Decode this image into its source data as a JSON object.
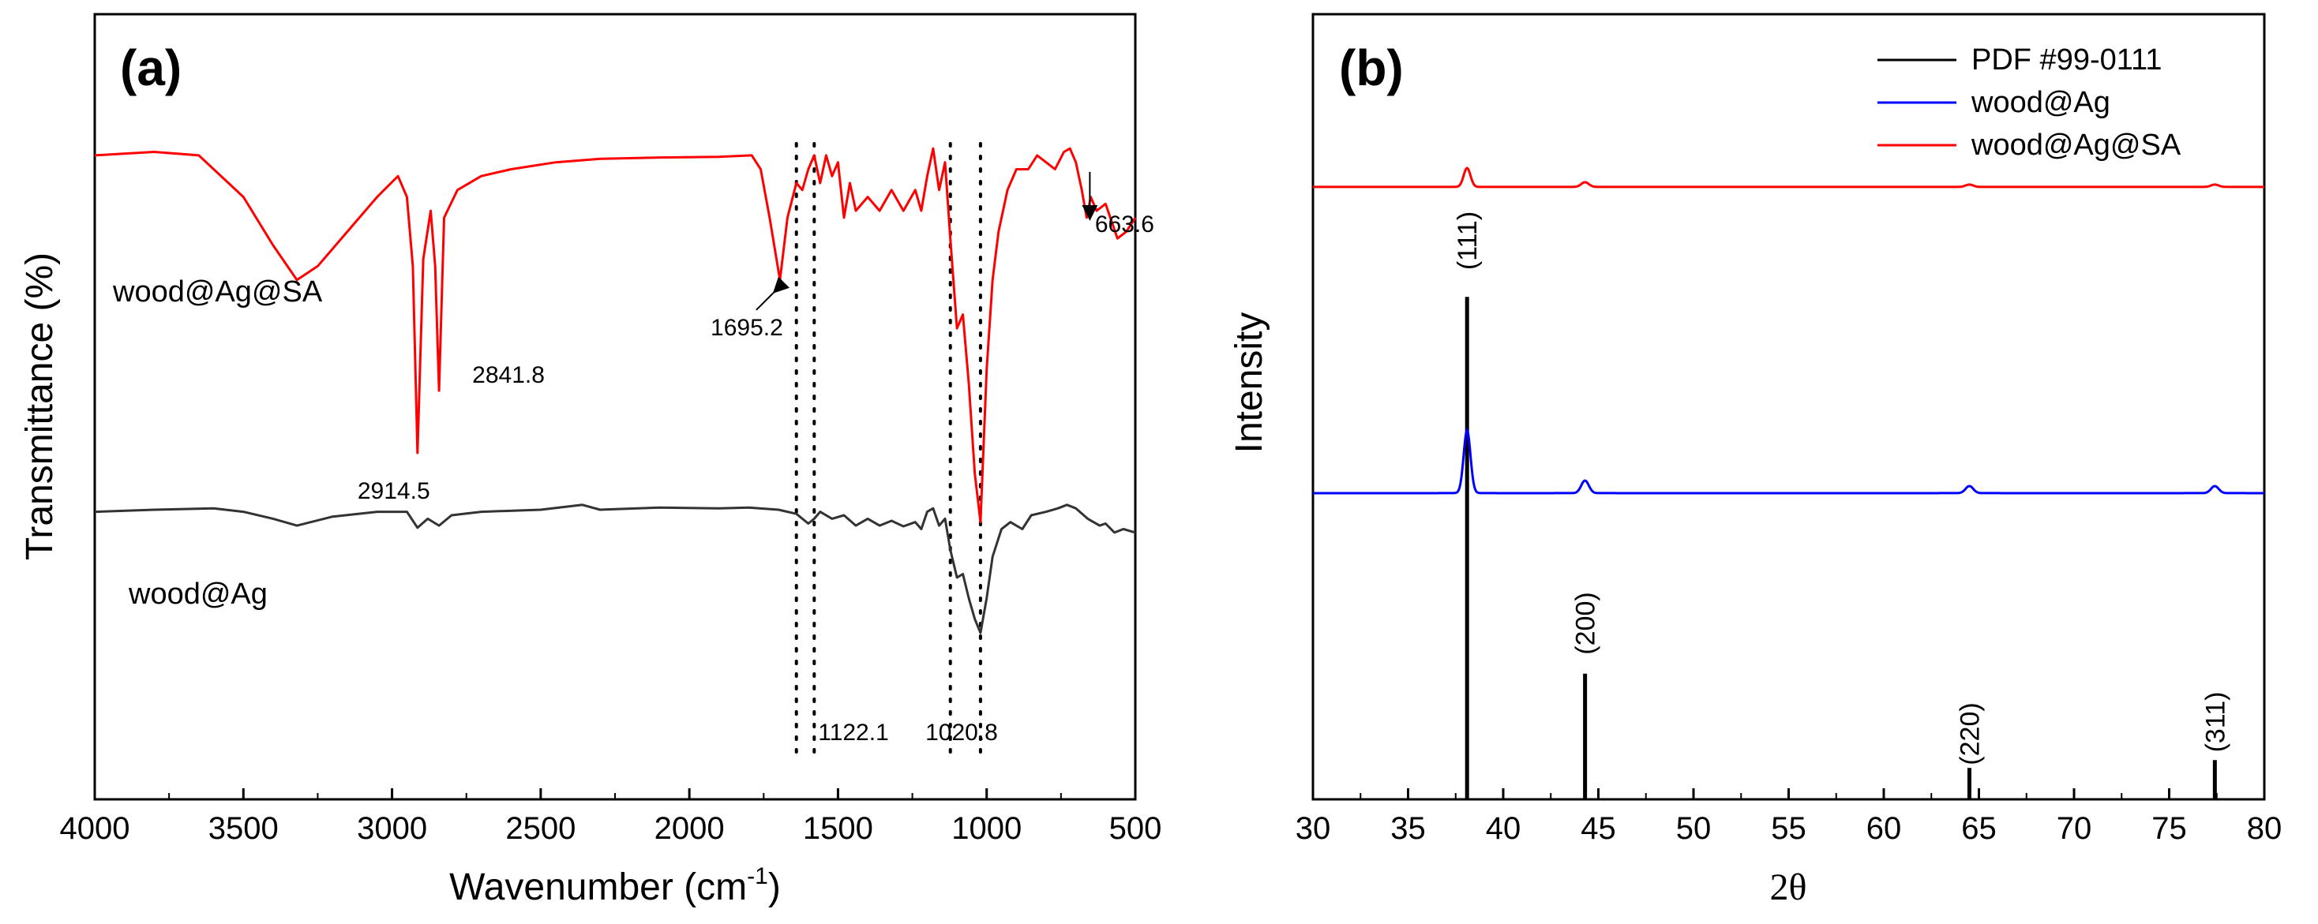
{
  "chart_data": [
    {
      "panel_label": "(a)",
      "type": "line",
      "xlabel": "Wavenumber (cm",
      "xlabel_sup": "-1",
      "xlabel_close": ")",
      "ylabel": "Transmittance (%)",
      "xlim": [
        4000,
        500
      ],
      "x_ticks": [
        4000,
        3500,
        3000,
        2500,
        2000,
        1500,
        1000,
        500
      ],
      "x_tick_labels": [
        "4000",
        "3500",
        "3000",
        "2500",
        "2000",
        "1500",
        "1000",
        "500"
      ],
      "ylim": [
        0,
        100
      ],
      "y_ticks_shown": false,
      "series": [
        {
          "name": "wood@Ag@SA",
          "color": "#ff0000",
          "points": [
            [
              4000,
              91
            ],
            [
              3800,
              91.5
            ],
            [
              3650,
              91
            ],
            [
              3500,
              85
            ],
            [
              3400,
              78
            ],
            [
              3320,
              73
            ],
            [
              3250,
              75
            ],
            [
              3150,
              80
            ],
            [
              3050,
              85
            ],
            [
              2980,
              88
            ],
            [
              2950,
              85
            ],
            [
              2930,
              75
            ],
            [
              2914.5,
              48
            ],
            [
              2895,
              76
            ],
            [
              2870,
              83
            ],
            [
              2855,
              75
            ],
            [
              2841.8,
              57
            ],
            [
              2825,
              82
            ],
            [
              2780,
              86
            ],
            [
              2700,
              88
            ],
            [
              2600,
              89
            ],
            [
              2450,
              90
            ],
            [
              2300,
              90.5
            ],
            [
              2100,
              90.7
            ],
            [
              1900,
              90.8
            ],
            [
              1790,
              91
            ],
            [
              1760,
              89
            ],
            [
              1730,
              82
            ],
            [
              1695.2,
              73
            ],
            [
              1670,
              82
            ],
            [
              1640,
              87
            ],
            [
              1620,
              86
            ],
            [
              1600,
              89
            ],
            [
              1580,
              91
            ],
            [
              1560,
              87
            ],
            [
              1540,
              91
            ],
            [
              1520,
              88
            ],
            [
              1500,
              90
            ],
            [
              1480,
              82
            ],
            [
              1460,
              87
            ],
            [
              1440,
              83
            ],
            [
              1400,
              85
            ],
            [
              1360,
              83
            ],
            [
              1320,
              86
            ],
            [
              1280,
              83
            ],
            [
              1240,
              86
            ],
            [
              1220,
              83
            ],
            [
              1200,
              88
            ],
            [
              1180,
              92
            ],
            [
              1160,
              86
            ],
            [
              1140,
              90
            ],
            [
              1120.5,
              78
            ],
            [
              1100,
              66
            ],
            [
              1080,
              68
            ],
            [
              1060,
              58
            ],
            [
              1040,
              45
            ],
            [
              1020.8,
              38
            ],
            [
              1000,
              60
            ],
            [
              980,
              73
            ],
            [
              960,
              80
            ],
            [
              930,
              86
            ],
            [
              900,
              89
            ],
            [
              860,
              89
            ],
            [
              830,
              91
            ],
            [
              800,
              90
            ],
            [
              770,
              89
            ],
            [
              740,
              91.5
            ],
            [
              720,
              92
            ],
            [
              700,
              90
            ],
            [
              680,
              86
            ],
            [
              663.6,
              82
            ],
            [
              650,
              85
            ],
            [
              630,
              83
            ],
            [
              600,
              84
            ],
            [
              560,
              79
            ],
            [
              530,
              80
            ],
            [
              500,
              82
            ]
          ],
          "peak_labels": [
            {
              "text": "2914.5",
              "x": 2914.5,
              "y": 48
            },
            {
              "text": "2841.8",
              "x": 2841.8,
              "y": 57
            },
            {
              "text": "1695.2",
              "x": 1695.2,
              "y": 73
            },
            {
              "text": "663.6",
              "x": 663.6,
              "y": 82
            }
          ]
        },
        {
          "name": "wood@Ag",
          "color": "#333333",
          "points": [
            [
              4000,
              39.5
            ],
            [
              3800,
              39.8
            ],
            [
              3600,
              40
            ],
            [
              3500,
              39.5
            ],
            [
              3400,
              38.5
            ],
            [
              3320,
              37.5
            ],
            [
              3200,
              38.8
            ],
            [
              3050,
              39.5
            ],
            [
              2950,
              39.5
            ],
            [
              2914.5,
              37.2
            ],
            [
              2880,
              38.5
            ],
            [
              2841.8,
              37.5
            ],
            [
              2800,
              39
            ],
            [
              2700,
              39.5
            ],
            [
              2500,
              39.8
            ],
            [
              2360,
              40.5
            ],
            [
              2300,
              39.8
            ],
            [
              2100,
              40.1
            ],
            [
              1900,
              40
            ],
            [
              1800,
              40.1
            ],
            [
              1700,
              39.8
            ],
            [
              1640,
              39.2
            ],
            [
              1600,
              37.8
            ],
            [
              1580,
              38.5
            ],
            [
              1560,
              39.5
            ],
            [
              1520,
              38.5
            ],
            [
              1480,
              39
            ],
            [
              1440,
              37.5
            ],
            [
              1400,
              38.5
            ],
            [
              1360,
              37.5
            ],
            [
              1320,
              38.2
            ],
            [
              1280,
              37.4
            ],
            [
              1240,
              38
            ],
            [
              1220,
              37
            ],
            [
              1200,
              39.5
            ],
            [
              1180,
              40
            ],
            [
              1160,
              37.5
            ],
            [
              1140,
              38.5
            ],
            [
              1122.1,
              34
            ],
            [
              1100,
              30
            ],
            [
              1080,
              30.5
            ],
            [
              1060,
              27
            ],
            [
              1040,
              24
            ],
            [
              1020.8,
              22
            ],
            [
              1000,
              27
            ],
            [
              980,
              33
            ],
            [
              950,
              37
            ],
            [
              920,
              38
            ],
            [
              880,
              37
            ],
            [
              850,
              39
            ],
            [
              800,
              39.5
            ],
            [
              760,
              40
            ],
            [
              730,
              40.5
            ],
            [
              700,
              40
            ],
            [
              660,
              38.5
            ],
            [
              620,
              37.5
            ],
            [
              600,
              37.8
            ],
            [
              570,
              36.5
            ],
            [
              540,
              37
            ],
            [
              500,
              36.5
            ]
          ]
        }
      ],
      "series_labels": [
        "wood@Ag@SA",
        "wood@Ag"
      ],
      "dotted_reference_lines": [
        1640,
        1580,
        1122.1,
        1020.8
      ],
      "bottom_labels": [
        "1122.1",
        "1020.8"
      ]
    },
    {
      "panel_label": "(b)",
      "type": "line",
      "xlabel": "2θ",
      "ylabel": "Intensity",
      "xlim": [
        30,
        80
      ],
      "x_ticks": [
        30,
        35,
        40,
        45,
        50,
        55,
        60,
        65,
        70,
        75,
        80
      ],
      "x_tick_labels": [
        "30",
        "35",
        "40",
        "45",
        "50",
        "55",
        "60",
        "65",
        "70",
        "75",
        "80"
      ],
      "ylim": [
        0,
        100
      ],
      "y_ticks_shown": false,
      "legend_position": "top-right",
      "series": [
        {
          "name": "PDF #99-0111",
          "color": "#000000",
          "style": "sticks",
          "sticks": [
            [
              38.1,
              64
            ],
            [
              44.3,
              16
            ],
            [
              64.5,
              4
            ],
            [
              77.4,
              5
            ]
          ]
        },
        {
          "name": "wood@Ag",
          "color": "#0000ff",
          "baseline": 39,
          "peaks": [
            [
              38.1,
              8,
              0.18
            ],
            [
              44.3,
              1.6,
              0.2
            ],
            [
              64.5,
              0.9,
              0.2
            ],
            [
              77.4,
              0.9,
              0.2
            ]
          ]
        },
        {
          "name": "wood@Ag@SA",
          "color": "#ff0000",
          "baseline": 78,
          "peaks": [
            [
              38.1,
              2.4,
              0.18
            ],
            [
              44.3,
              0.6,
              0.2
            ],
            [
              64.5,
              0.3,
              0.2
            ],
            [
              77.4,
              0.3,
              0.2
            ]
          ]
        }
      ],
      "stick_labels": [
        {
          "text": "(111)",
          "x": 38.1
        },
        {
          "text": "(200)",
          "x": 44.3
        },
        {
          "text": "(220)",
          "x": 64.5
        },
        {
          "text": "(311)",
          "x": 77.4
        }
      ]
    }
  ]
}
